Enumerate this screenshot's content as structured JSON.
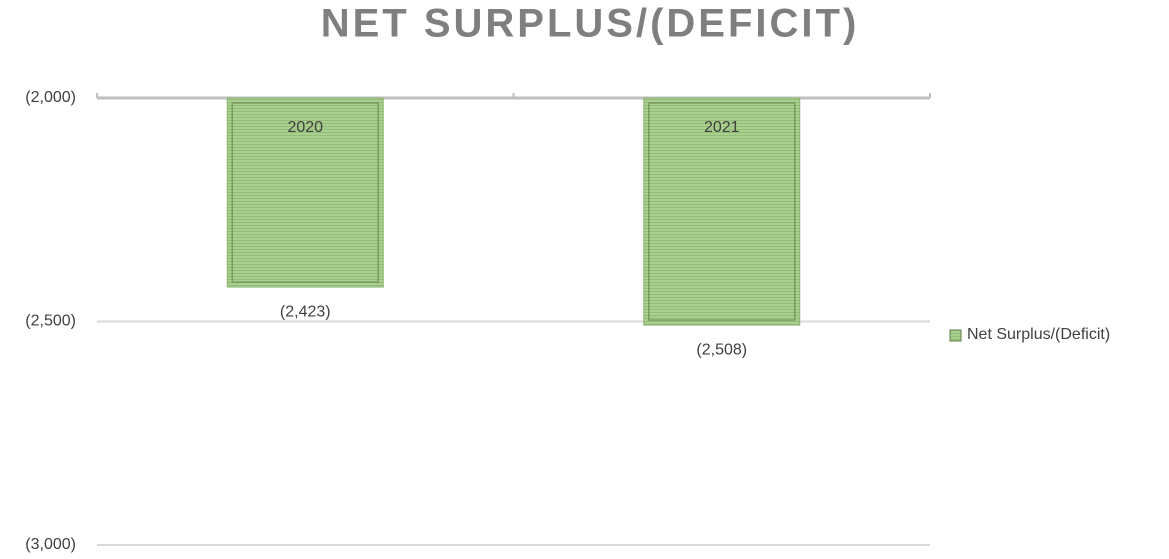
{
  "chart_data": {
    "type": "bar",
    "title": "NET SURPLUS/(DEFICIT)",
    "categories": [
      "2020",
      "2021"
    ],
    "series": [
      {
        "name": "Net Surplus/(Deficit)",
        "color": "#a9d18e",
        "values": [
          -2423,
          -2508
        ],
        "value_labels": [
          "(2,423)",
          "(2,508)"
        ]
      }
    ],
    "ylim": [
      -3000,
      -2000
    ],
    "yticks": [
      {
        "value": -2000,
        "label": "(2,000)"
      },
      {
        "value": -2500,
        "label": "(2,500)"
      },
      {
        "value": -3000,
        "label": "(3,000)"
      }
    ],
    "grid": true,
    "legend": "right"
  }
}
